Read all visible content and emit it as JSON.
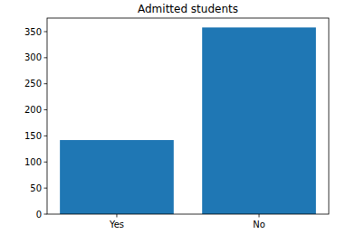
{
  "chart_data": {
    "type": "bar",
    "title": "Admitted students",
    "categories": [
      "Yes",
      "No"
    ],
    "values": [
      142,
      358
    ],
    "color": "#1f77b4",
    "ylim": [
      0,
      376
    ],
    "yticks": [
      0,
      50,
      100,
      150,
      200,
      250,
      300,
      350
    ],
    "grid": false
  }
}
